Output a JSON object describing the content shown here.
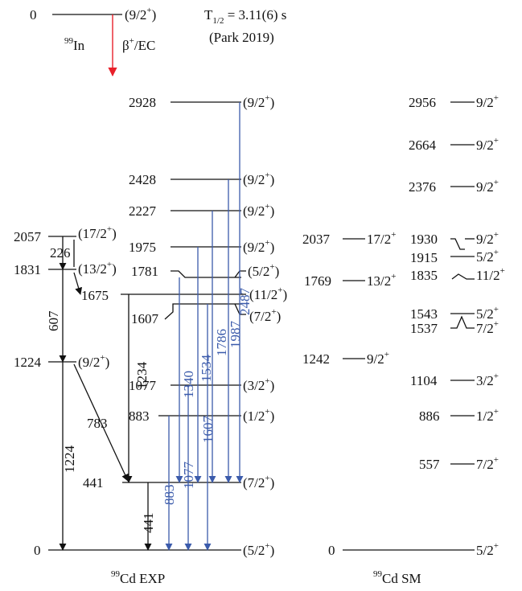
{
  "parent": {
    "energy": "0",
    "spin": "(9/2",
    "nucleus_mass": "99",
    "nucleus_symbol": "In",
    "decay_mode_symbol": "β",
    "decay_mode_rest": "/EC",
    "half_life_T": "T",
    "half_life_sub": "1/2",
    "half_life_value": " = 3.11(6) s",
    "reference": "(Park 2019)"
  },
  "exp_levels": [
    {
      "energy": "2928",
      "spin": "(9/2"
    },
    {
      "energy": "2428",
      "spin": "(9/2"
    },
    {
      "energy": "2227",
      "spin": "(9/2"
    },
    {
      "energy": "1975",
      "spin": "(9/2"
    },
    {
      "energy": "1781",
      "spin": "(5/2"
    },
    {
      "energy": "1675",
      "spin": "(11/2"
    },
    {
      "energy": "1607",
      "spin": "(7/2"
    },
    {
      "energy": "1077",
      "spin": "(3/2"
    },
    {
      "energy": "883",
      "spin": "(1/2"
    },
    {
      "energy": "441",
      "spin": "(7/2"
    },
    {
      "energy": "0",
      "spin": "(5/2"
    }
  ],
  "yrast_levels": [
    {
      "energy": "2057",
      "spin": "(17/2"
    },
    {
      "energy": "1831",
      "spin": "(13/2"
    },
    {
      "energy": "1224",
      "spin": "(9/2"
    }
  ],
  "black_transitions": [
    "226",
    "607",
    "1234",
    "783",
    "1224",
    "441"
  ],
  "blue_transitions": [
    "883",
    "1077",
    "1340",
    "1534",
    "1607",
    "1786",
    "1987",
    "2487"
  ],
  "sm_levels": [
    {
      "energy": "2956",
      "spin": "9/2"
    },
    {
      "energy": "2664",
      "spin": "9/2"
    },
    {
      "energy": "2376",
      "spin": "9/2"
    },
    {
      "energy": "2037",
      "spin": "17/2"
    },
    {
      "energy": "1930",
      "spin": "9/2"
    },
    {
      "energy": "1915",
      "spin": "5/2"
    },
    {
      "energy": "1769",
      "spin": "13/2"
    },
    {
      "energy": "1835",
      "spin": "11/2"
    },
    {
      "energy": "1543",
      "spin": "5/2"
    },
    {
      "energy": "1537",
      "spin": "7/2"
    },
    {
      "energy": "1242",
      "spin": "9/2"
    },
    {
      "energy": "1104",
      "spin": "3/2"
    },
    {
      "energy": "886",
      "spin": "1/2"
    },
    {
      "energy": "557",
      "spin": "7/2"
    },
    {
      "energy": "0",
      "spin": "5/2"
    }
  ],
  "labels": {
    "exp_mass": "99",
    "exp_title": "Cd EXP",
    "sm_mass": "99",
    "sm_title": "Cd SM",
    "plus": "+",
    "close": ")"
  },
  "colors": {
    "blue_transition": "#3b5bab",
    "beta_arrow": "#e8202a",
    "black": "#111111"
  }
}
